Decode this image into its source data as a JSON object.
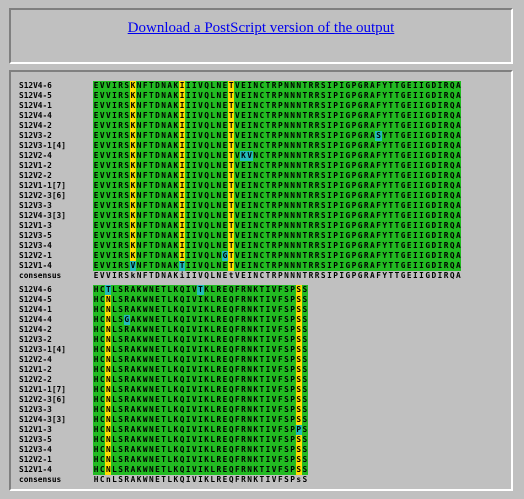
{
  "header": {
    "download_label": "Download a PostScript version of the output"
  },
  "colors": {
    "identical": "#22bb22",
    "similar": "#ffdd00",
    "variant": "#22bbbb",
    "background": "#c0c0c0",
    "link": "#0000ee"
  },
  "alignment": {
    "blocks": [
      {
        "rows": [
          {
            "name": "S12V4-6",
            "seq": "EVVIRSKNFTDNAKIIIVQLNETVEINCTRPNNNTRRSIPIGPGRAFYTTGEIIGDIRQA"
          },
          {
            "name": "S12V4-5",
            "seq": "EVVIRSKNFTDNAKIIIVQLNETVEINCTRPNNNTRRSIPIGPGRAFYTTGEIIGDIRQA"
          },
          {
            "name": "S12V4-1",
            "seq": "EVVIRSKNFTDNAKIIIVQLNETVEINCTRPNNNTRRSIPIGPGRAFYTTGEIIGDIRQA"
          },
          {
            "name": "S12V4-4",
            "seq": "EVVIRSKNFTDNAKIIIVQLNETVEINCTRPNNNTRRSIPIGPGRAFYTTGEIIGDIRQA"
          },
          {
            "name": "S12V4-2",
            "seq": "EVVIRSKNFTDNAKIIIVQLNETVEINCTRPNNNTRRSIPIGPGRAFYTTGEIIGDIRQA"
          },
          {
            "name": "S12V3-2",
            "seq": "EVVIRSKNFTDNAKIIIVQLNETVEINCTRPNNNTRRSIPIGPGRASYTTGEIIGDIRQA"
          },
          {
            "name": "S12V3-1[4]",
            "seq": "EVVIRSKNFTDNAKIIIVQLNETVEINCTRPNNNTRRSIPIGPGRAFYTTGEIIGDIRQA"
          },
          {
            "name": "S12V2-4",
            "seq": "EVVIRSKNFTDNAKIIIVQLNETVKVNCTRPNNNTRRSIPIGPGRAFYTTGEIIGDIRQA"
          },
          {
            "name": "S12V1-2",
            "seq": "EVVIRSKNFTDNAKIIIVQLNETVEINCTRPNNNTRRSIPIGPGRAFYTTGEIIGDIRQA"
          },
          {
            "name": "S12V2-2",
            "seq": "EVVIRSKNFTDNAKIIIVQLNETVEINCTRPNNNTRRSIPIGPGRAFYTTGEIIGDIRQA"
          },
          {
            "name": "S12V1-1[7]",
            "seq": "EVVIRSKNFTDNAKIIIVQLNETVEINCTRPNNNTRRSIPIGPGRAFYTTGEIIGDIRQA"
          },
          {
            "name": "S12V2-3[6]",
            "seq": "EVVIRSKNFTDNAKIIIVQLNETVEINCTRPNNNTRRSIPIGPGRAFYTTGEIIGDIRQA"
          },
          {
            "name": "S12V3-3",
            "seq": "EVVIRSKNFTDNAKIIIVQLNETVEINCTRPNNNTRRSIPIGPGRAFYTTGEIIGDIRQA"
          },
          {
            "name": "S12V4-3[3]",
            "seq": "EVVIRSKNFTDNAKIIIVQLNETVEINCTRPNNNTRRSIPIGPGRAFYTTGEIIGDIRQA"
          },
          {
            "name": "S12V1-3",
            "seq": "EVVIRSKNFTDNAKIIIVQLNETVEINCTRPNNNTRRSIPIGPGRAFYTTGEIIGDIRQA"
          },
          {
            "name": "S12V3-5",
            "seq": "EVVIRSKNFTDNAKIIIVQLNETVEINCTRPNNNTRRSIPIGPGRAFYTTGEIIGDIRQA"
          },
          {
            "name": "S12V3-4",
            "seq": "EVVIRSKNFTDNAKIIIVQLNETVEINCTRPNNNTRRSIPIGPGRAFYTTGEIIGDIRQA"
          },
          {
            "name": "S12V2-1",
            "seq": "EVVIRSKNFTDNAKIIIVQLNGTVEINCTRPNNNTRRSIPIGPGRAFYTTGEIIGDIRQA"
          },
          {
            "name": "S12V1-4",
            "seq": "EVVIRSVNFTDNAKTIIVQLNETVEINCTRPNNNTRRSIPIGPGRAFYTTGEIIGDIRQA"
          }
        ],
        "consensus": {
          "name": "consensus",
          "seq": "EVVIRSkNFTDNAKiIIVQLNEtVEINCTRPNNNTRRSIPIGPGRAFYTTGEIIGDIRQA"
        }
      },
      {
        "rows": [
          {
            "name": "S12V4-6",
            "seq": "HCTLSRAKWNETLKQIVTKLREQFRNKTIVFSPSS"
          },
          {
            "name": "S12V4-5",
            "seq": "HCNLSRAKWNETLKQIVIKLREQFRNKTIVFSPSS"
          },
          {
            "name": "S12V4-1",
            "seq": "HCNLSRAKWNETLKQIVIKLREQFRNKTIVFSPSS"
          },
          {
            "name": "S12V4-4",
            "seq": "HCNLSGAKWNETLKQIVIKLREQFRNKTIVFSPSS"
          },
          {
            "name": "S12V4-2",
            "seq": "HCNLSRAKWNETLKQIVIKLREQFRNKTIVFSPSS"
          },
          {
            "name": "S12V3-2",
            "seq": "HCNLSRAKWNETLKQIVIKLREQFRNKTIVFSPSS"
          },
          {
            "name": "S12V3-1[4]",
            "seq": "HCNLSRAKWNETLKQIVIKLREQFRNKTIVFSPSS"
          },
          {
            "name": "S12V2-4",
            "seq": "HCNLSRAKWNETLKQIVIKLREQFRNKTIVFSPSS"
          },
          {
            "name": "S12V1-2",
            "seq": "HCNLSRAKWNETLKQIVIKLREQFRNKTIVFSPSS"
          },
          {
            "name": "S12V2-2",
            "seq": "HCNLSRAKWNETLKQIVIKLREQFRNKTIVFSPSS"
          },
          {
            "name": "S12V1-1[7]",
            "seq": "HCNLSRAKWNETLKQIVIKLREQFRNKTIVFSPSS"
          },
          {
            "name": "S12V2-3[6]",
            "seq": "HCNLSRAKWNETLKQIVIKLREQFRNKTIVFSPSS"
          },
          {
            "name": "S12V3-3",
            "seq": "HCNLSRAKWNETLKQIVIKLREQFRNKTIVFSPSS"
          },
          {
            "name": "S12V4-3[3]",
            "seq": "HCNLSRAKWNETLKQIVIKLREQFRNKTIVFSPSS"
          },
          {
            "name": "S12V1-3",
            "seq": "HCNLSRAKWNETLKQIVIKLREQFRNKTIVFSPPS"
          },
          {
            "name": "S12V3-5",
            "seq": "HCNLSRAKWNETLKQIVIKLREQFRNKTIVFSPSS"
          },
          {
            "name": "S12V3-4",
            "seq": "HCNLSRAKWNETLKQIVIKLREQFRNKTIVFSPSS"
          },
          {
            "name": "S12V2-1",
            "seq": "HCNLSRAKWNETLKQIVIKLREQFRNKTIVFSPSS"
          },
          {
            "name": "S12V1-4",
            "seq": "HCNLSRAKWNETLKQIVIKLREQFRNKTIVFSPSS"
          }
        ],
        "consensus": {
          "name": "consensus",
          "seq": "HCnLSRAKWNETLKQIVIKLREQFRNKTIVFSPsS"
        }
      }
    ]
  }
}
